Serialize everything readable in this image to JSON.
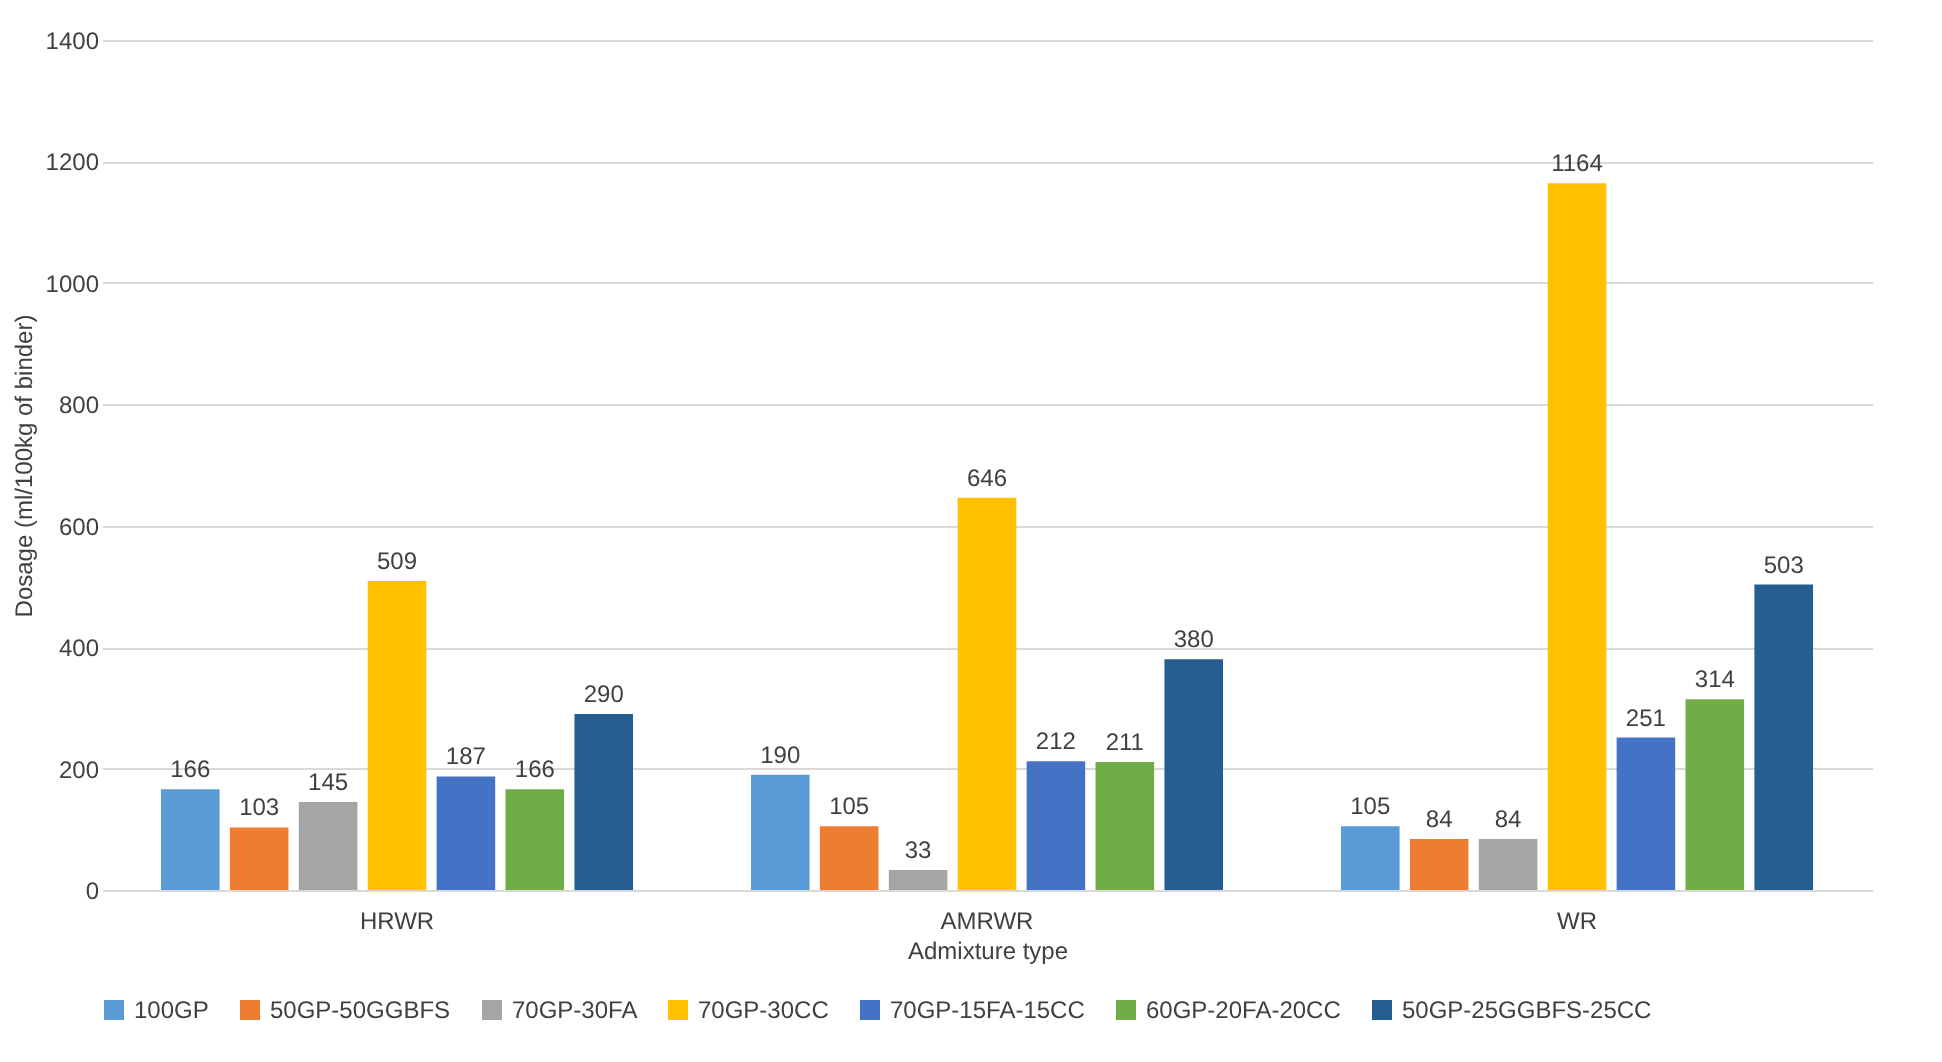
{
  "chart_data": {
    "type": "bar",
    "xlabel": "Admixture type",
    "ylabel": "Dosage (ml/100kg of binder)",
    "categories": [
      "HRWR",
      "AMRWR",
      "WR"
    ],
    "series": [
      {
        "name": "100GP",
        "color": "#5b9bd5",
        "values": [
          166,
          190,
          105
        ]
      },
      {
        "name": "50GP-50GGBFS",
        "color": "#ed7d31",
        "values": [
          103,
          105,
          84
        ]
      },
      {
        "name": "70GP-30FA",
        "color": "#a5a5a5",
        "values": [
          145,
          33,
          84
        ]
      },
      {
        "name": "70GP-30CC",
        "color": "#ffc000",
        "values": [
          509,
          646,
          1164
        ]
      },
      {
        "name": "70GP-15FA-15CC",
        "color": "#4472c4",
        "values": [
          187,
          212,
          251
        ]
      },
      {
        "name": "60GP-20FA-20CC",
        "color": "#70ad47",
        "values": [
          166,
          211,
          314
        ]
      },
      {
        "name": "50GP-25GGBFS-25CC",
        "color": "#255e91",
        "values": [
          290,
          380,
          503
        ]
      }
    ],
    "ylim": [
      0,
      1400
    ],
    "yticks": [
      0,
      200,
      400,
      600,
      800,
      1000,
      1200,
      1400
    ],
    "grid": "y",
    "legend": "bottom",
    "data_labels": true
  }
}
